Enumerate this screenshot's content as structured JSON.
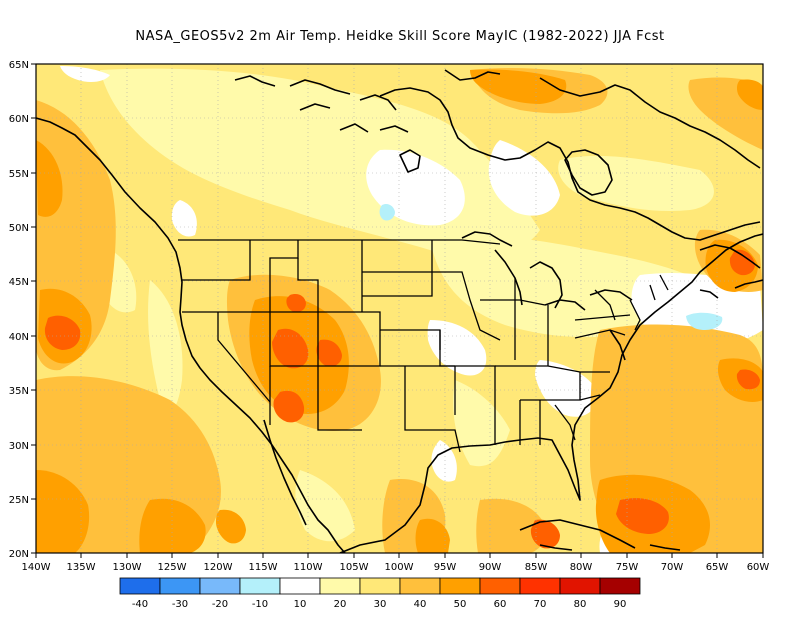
{
  "title": "NASA_GEOS5v2  2m Air Temp. Heidke Skill Score MayIC (1982-2022) JJA Fcst",
  "lat_labels": [
    "65N",
    "60N",
    "55N",
    "50N",
    "45N",
    "40N",
    "35N",
    "30N",
    "25N",
    "20N"
  ],
  "lon_labels": [
    "140W",
    "135W",
    "130W",
    "125W",
    "120W",
    "115W",
    "110W",
    "105W",
    "100W",
    "95W",
    "90W",
    "85W",
    "80W",
    "75W",
    "70W",
    "65W",
    "60W"
  ],
  "legend": {
    "labels": [
      "-40",
      "-30",
      "-20",
      "-10",
      "10",
      "20",
      "30",
      "40",
      "50",
      "60",
      "70",
      "80",
      "90"
    ],
    "colors": [
      "#1e6eeb",
      "#3c96f5",
      "#78b9fa",
      "#b4f0fa",
      "#ffffff",
      "#fffaaa",
      "#ffe878",
      "#ffc03c",
      "#ffa000",
      "#ff6000",
      "#ff3200",
      "#e11400",
      "#a50000"
    ]
  },
  "colors": {
    "base_fill": "#ffe878",
    "light_yellow": "#fffaaa",
    "light_orange": "#ffc03c",
    "orange": "#ffa000",
    "dark_orange": "#ff6000",
    "white": "#ffffff",
    "light_blue": "#b4f0fa"
  }
}
